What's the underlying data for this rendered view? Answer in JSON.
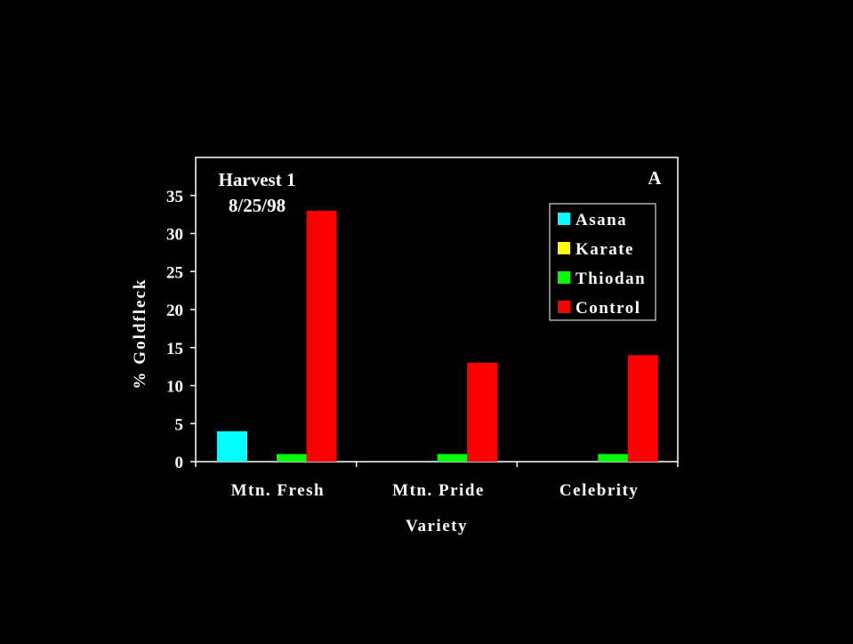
{
  "chart_data": {
    "type": "bar",
    "annotation": [
      "Harvest 1",
      "8/25/98"
    ],
    "panel_letter": "A",
    "xlabel": "Variety",
    "ylabel": "% Goldfleck",
    "ylim": [
      0,
      40
    ],
    "yticks": [
      0,
      5,
      10,
      15,
      20,
      25,
      30,
      35
    ],
    "grid": false,
    "legend_position": "top-right",
    "categories": [
      "Mtn. Fresh",
      "Mtn. Pride",
      "Celebrity"
    ],
    "series": [
      {
        "name": "Asana",
        "color": "#00ffff",
        "values": [
          4,
          0,
          0
        ]
      },
      {
        "name": "Karate",
        "color": "#ffff00",
        "values": [
          0,
          0,
          0
        ]
      },
      {
        "name": "Thiodan",
        "color": "#00ff00",
        "values": [
          1,
          1,
          1
        ]
      },
      {
        "name": "Control",
        "color": "#ff0000",
        "values": [
          33,
          13,
          14
        ]
      }
    ],
    "colors": {
      "background": "#000000",
      "axis": "#ffffff",
      "text": "#ffffff"
    }
  }
}
